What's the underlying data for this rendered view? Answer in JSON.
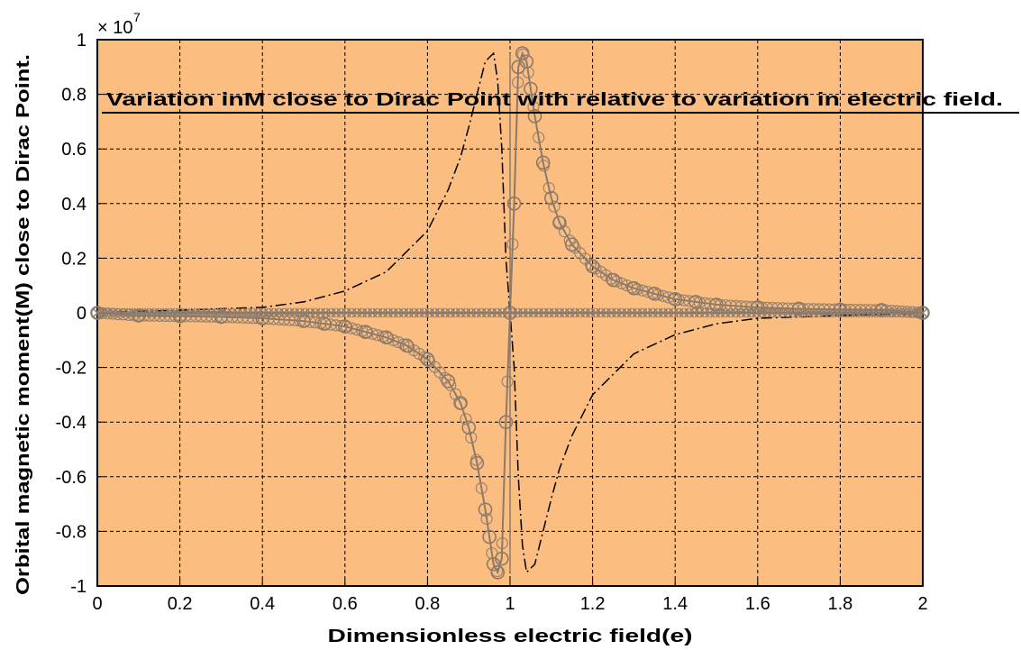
{
  "chart_data": {
    "type": "line",
    "title": "Variation inM close to Dirac Point with relative to variation in electric field.",
    "xlabel": "Dimensionless electric field(e)",
    "ylabel": "Orbital magnetic moment(M) close to Dirac Point.",
    "y_exponent_base": "× 10",
    "y_exponent_power": "7",
    "xlim": [
      0,
      2
    ],
    "ylim": [
      -1,
      1
    ],
    "grid": true,
    "plot_background": "#fbbd80",
    "xticks": [
      "0",
      "0.2",
      "0.4",
      "0.6",
      "0.8",
      "1",
      "1.2",
      "1.4",
      "1.6",
      "1.8",
      "2"
    ],
    "yticks": [
      "-1",
      "-0.8",
      "-0.6",
      "-0.4",
      "-0.2",
      "0",
      "0.2",
      "0.4",
      "0.6",
      "0.8",
      "1"
    ],
    "series": [
      {
        "style": "solid line with circle markers",
        "color": "#8c7a6b",
        "x": [
          0.0,
          0.1,
          0.2,
          0.3,
          0.4,
          0.5,
          0.55,
          0.6,
          0.65,
          0.7,
          0.75,
          0.8,
          0.85,
          0.88,
          0.9,
          0.92,
          0.94,
          0.95,
          0.96,
          0.97,
          0.98,
          0.99,
          1.0,
          1.01,
          1.02,
          1.03,
          1.04,
          1.05,
          1.06,
          1.08,
          1.1,
          1.12,
          1.15,
          1.2,
          1.25,
          1.3,
          1.35,
          1.4,
          1.45,
          1.5,
          1.6,
          1.7,
          1.8,
          1.9,
          2.0
        ],
        "values": [
          0.0,
          -0.01,
          -0.012,
          -0.015,
          -0.02,
          -0.03,
          -0.04,
          -0.05,
          -0.07,
          -0.09,
          -0.12,
          -0.17,
          -0.25,
          -0.33,
          -0.42,
          -0.55,
          -0.72,
          -0.82,
          -0.92,
          -0.95,
          -0.9,
          -0.4,
          0.0,
          0.4,
          0.9,
          0.95,
          0.92,
          0.82,
          0.72,
          0.55,
          0.42,
          0.33,
          0.25,
          0.17,
          0.12,
          0.09,
          0.07,
          0.05,
          0.04,
          0.03,
          0.02,
          0.015,
          0.012,
          0.01,
          0.0
        ]
      },
      {
        "style": "dash-dot line",
        "color": "#000000",
        "x": [
          0.0,
          0.2,
          0.4,
          0.5,
          0.6,
          0.7,
          0.8,
          0.85,
          0.88,
          0.9,
          0.92,
          0.94,
          0.96,
          0.97,
          0.98,
          0.99,
          1.0,
          1.01,
          1.02,
          1.03,
          1.04,
          1.06,
          1.08,
          1.1,
          1.12,
          1.15,
          1.2,
          1.3,
          1.4,
          1.5,
          1.6,
          1.8,
          2.0
        ],
        "values": [
          0.0,
          0.01,
          0.02,
          0.04,
          0.08,
          0.15,
          0.3,
          0.45,
          0.57,
          0.68,
          0.8,
          0.92,
          0.95,
          0.85,
          0.6,
          0.2,
          0.0,
          -0.2,
          -0.6,
          -0.85,
          -0.95,
          -0.92,
          -0.8,
          -0.68,
          -0.57,
          -0.45,
          -0.3,
          -0.15,
          -0.08,
          -0.04,
          -0.02,
          -0.01,
          0.0
        ]
      },
      {
        "style": "solid line with x markers",
        "color": "#8c7a6b",
        "x": [
          0.0,
          2.0
        ],
        "values": [
          0.0,
          0.0
        ]
      }
    ]
  }
}
